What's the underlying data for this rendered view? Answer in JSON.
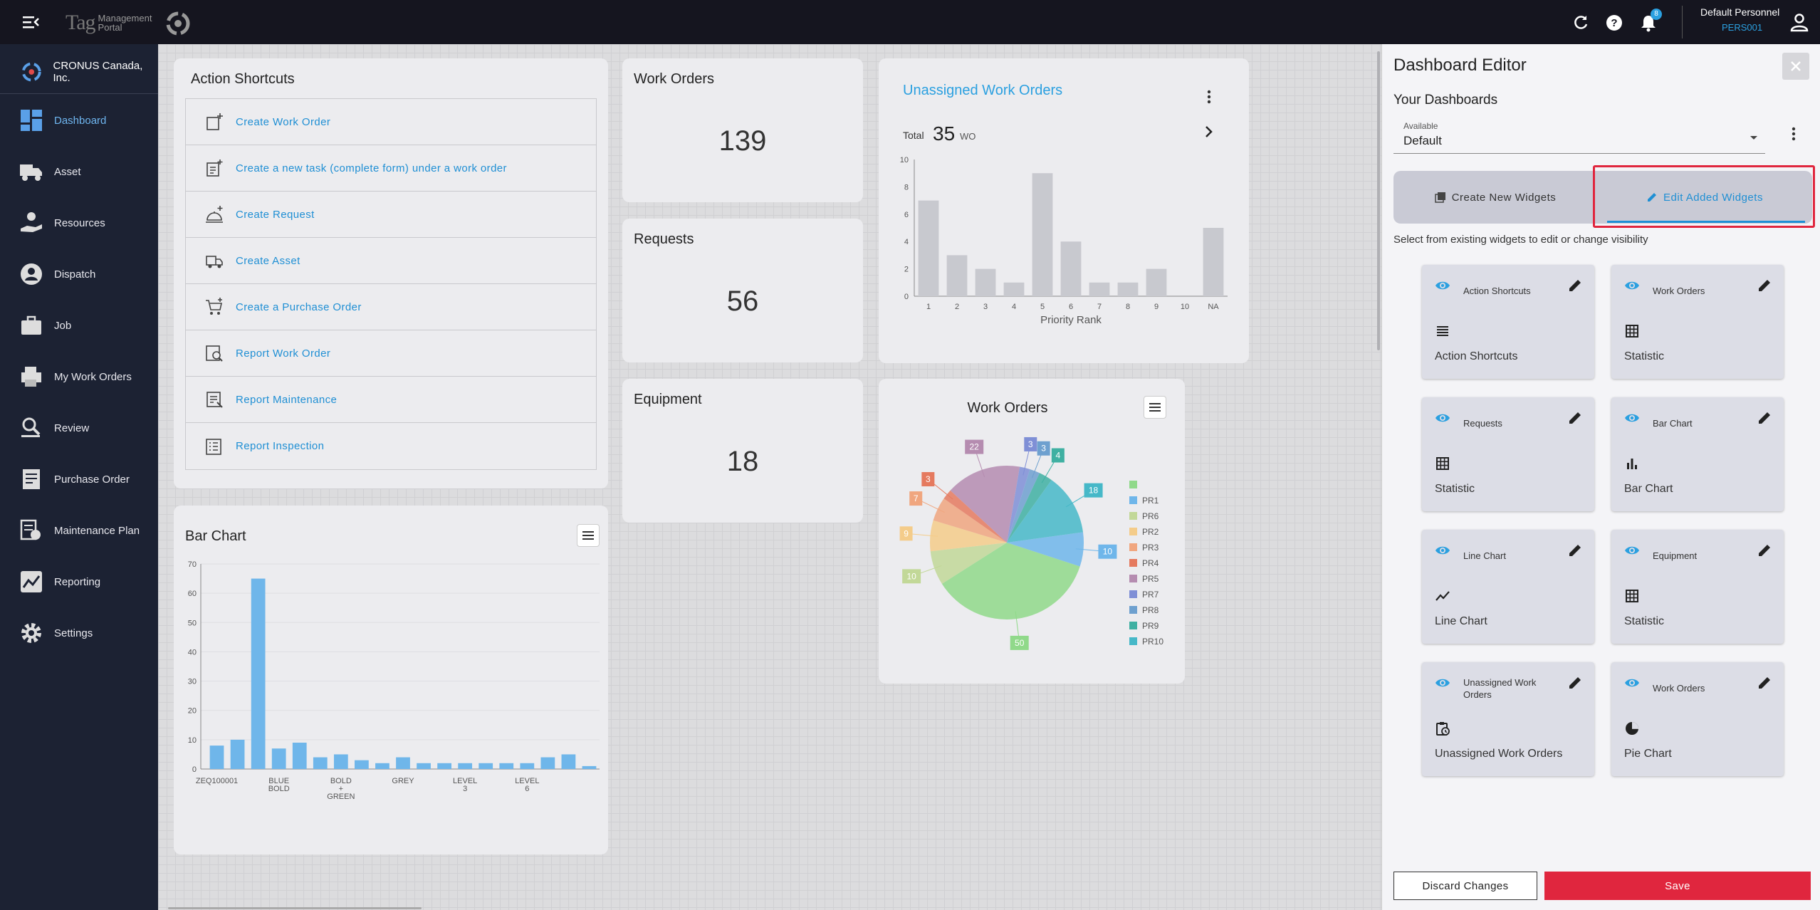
{
  "topbar": {
    "logo_main": "Tag",
    "logo_sub_1": "Management",
    "logo_sub_2": "Portal",
    "notifications": "8",
    "user_name": "Default Personnel",
    "user_id": "PERS001"
  },
  "sidebar": {
    "company": "CRONUS Canada, Inc.",
    "items": [
      {
        "label": "Dashboard",
        "icon": "dashboard-icon"
      },
      {
        "label": "Asset",
        "icon": "truck-icon"
      },
      {
        "label": "Resources",
        "icon": "hand-person-icon"
      },
      {
        "label": "Dispatch",
        "icon": "person-circle-icon"
      },
      {
        "label": "Job",
        "icon": "briefcase-icon"
      },
      {
        "label": "My Work Orders",
        "icon": "printer-icon"
      },
      {
        "label": "Review",
        "icon": "magnifier-list-icon"
      },
      {
        "label": "Purchase Order",
        "icon": "invoice-icon"
      },
      {
        "label": "Maintenance Plan",
        "icon": "maintenance-icon"
      },
      {
        "label": "Reporting",
        "icon": "trend-chart-icon"
      },
      {
        "label": "Settings",
        "icon": "gear-icon"
      }
    ]
  },
  "action_shortcuts": {
    "title": "Action Shortcuts",
    "items": [
      "Create Work Order",
      "Create a new task (complete form) under a work order",
      "Create Request",
      "Create Asset",
      "Create a Purchase Order",
      "Report Work Order",
      "Report Maintenance",
      "Report Inspection"
    ]
  },
  "stats": {
    "work_orders": {
      "title": "Work Orders",
      "value": "139"
    },
    "requests": {
      "title": "Requests",
      "value": "56"
    },
    "equipment": {
      "title": "Equipment",
      "value": "18"
    }
  },
  "unassigned": {
    "title": "Unassigned Work Orders",
    "total_label": "Total",
    "total": "35",
    "unit": "WO"
  },
  "bar_widget": {
    "title": "Bar Chart"
  },
  "pie_widget": {
    "title": "Work Orders"
  },
  "editor": {
    "title": "Dashboard Editor",
    "subtitle": "Your Dashboards",
    "available_label": "Available",
    "available_value": "Default",
    "tab_create": "Create New Widgets",
    "tab_edit": "Edit Added Widgets",
    "help": "Select from existing widgets to edit or change visibility",
    "widgets": [
      {
        "name": "Action Shortcuts",
        "type": "Action Shortcuts",
        "icon": "list-icon"
      },
      {
        "name": "Work Orders",
        "type": "Statistic",
        "icon": "grid-icon"
      },
      {
        "name": "Requests",
        "type": "Statistic",
        "icon": "grid-icon"
      },
      {
        "name": "Bar Chart",
        "type": "Bar Chart",
        "icon": "bar-chart-icon"
      },
      {
        "name": "Line Chart",
        "type": "Line Chart",
        "icon": "line-chart-icon"
      },
      {
        "name": "Equipment",
        "type": "Statistic",
        "icon": "grid-icon"
      },
      {
        "name": "Unassigned Work Orders",
        "type": "Unassigned Work Orders",
        "icon": "clipboard-clock-icon"
      },
      {
        "name": "Work Orders",
        "type": "Pie Chart",
        "icon": "pie-chart-icon"
      }
    ],
    "discard": "Discard Changes",
    "save": "Save",
    "accent": "#e0263e",
    "link_color": "#1f8fd4"
  },
  "chart_data": [
    {
      "type": "bar",
      "xlabel": "Priority Rank",
      "categories": [
        "1",
        "2",
        "3",
        "4",
        "5",
        "6",
        "7",
        "8",
        "9",
        "10",
        "NA"
      ],
      "values": [
        7,
        3,
        2,
        1,
        9,
        4,
        1,
        1,
        2,
        0,
        5
      ],
      "ylim": [
        0,
        10
      ],
      "yticks": [
        0,
        2,
        4,
        6,
        8,
        10
      ],
      "color": "#c8c9cf"
    },
    {
      "type": "bar",
      "title": "Bar Chart",
      "values": [
        8,
        10,
        65,
        7,
        9,
        4,
        5,
        3,
        2,
        4,
        2,
        2,
        2,
        2,
        2,
        2,
        4,
        5,
        1
      ],
      "tick_positions": [
        0,
        3,
        6,
        9,
        12,
        15
      ],
      "tick_labels": [
        [
          "ZEQ100001"
        ],
        [
          "BLUE",
          "BOLD"
        ],
        [
          "BOLD",
          "+",
          "GREEN"
        ],
        [
          "GREY"
        ],
        [
          "LEVEL",
          "3"
        ],
        [
          "LEVEL",
          "6"
        ]
      ],
      "ylim": [
        0,
        70
      ],
      "yticks": [
        0,
        10,
        20,
        30,
        40,
        50,
        60,
        70
      ],
      "color": "#6fb6ea"
    },
    {
      "type": "pie",
      "title": "Work Orders",
      "legend": [
        "",
        "PR1",
        "PR6",
        "PR2",
        "PR3",
        "PR4",
        "PR5",
        "PR7",
        "PR8",
        "PR9",
        "PR10"
      ],
      "colors": [
        "#90d98a",
        "#6fb6ea",
        "#c2d898",
        "#f4cc8a",
        "#f0a67f",
        "#e57a5f",
        "#b58cb0",
        "#7f8fd6",
        "#6ea0cf",
        "#3fb0a2",
        "#46b8c8"
      ],
      "slices": [
        {
          "label": "",
          "value": 50
        },
        {
          "label": "PR1",
          "value": 10
        },
        {
          "label": "PR6",
          "value": 10
        },
        {
          "label": "PR2",
          "value": 9
        },
        {
          "label": "PR3",
          "value": 7
        },
        {
          "label": "PR4",
          "value": 3
        },
        {
          "label": "PR5",
          "value": 22
        },
        {
          "label": "PR7",
          "value": 3
        },
        {
          "label": "PR8",
          "value": 3
        },
        {
          "label": "PR9",
          "value": 4
        },
        {
          "label": "PR10",
          "value": 18
        }
      ]
    }
  ]
}
